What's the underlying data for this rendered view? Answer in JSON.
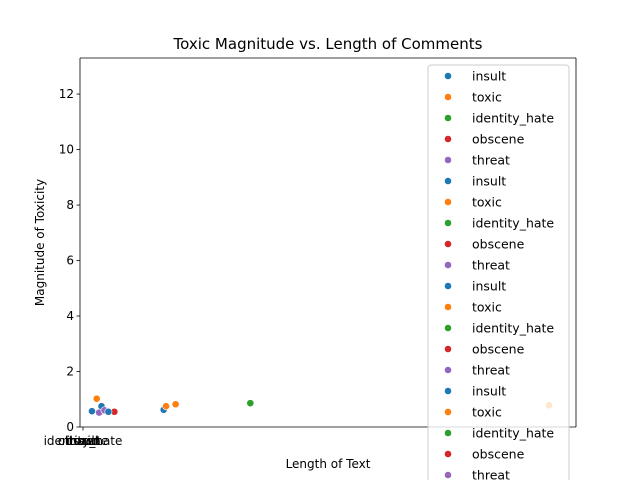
{
  "chart_data": {
    "type": "scatter",
    "title": "Toxic Magnitude vs. Length of Comments",
    "xlabel": "Length of Text",
    "ylabel": "Magnitude of Toxicity",
    "xlim": [
      -10,
      1650
    ],
    "ylim": [
      0,
      13.3
    ],
    "yticks": [
      0,
      2,
      4,
      6,
      8,
      10,
      12
    ],
    "xtick_labels": [
      "insult",
      "toxic",
      "identity_hate",
      "obscene",
      "threat"
    ],
    "grid": false,
    "legend_position": "right",
    "series": [
      {
        "name": "insult",
        "color": "#1f77b4",
        "points": [
          [
            30,
            0.57
          ],
          [
            62,
            0.57
          ],
          [
            270,
            0.62
          ]
        ]
      },
      {
        "name": "toxic",
        "color": "#ff7f0e",
        "points": [
          [
            46,
            1.02
          ],
          [
            278,
            0.75
          ],
          [
            310,
            0.82
          ],
          [
            1560,
            0.78
          ]
        ]
      },
      {
        "name": "identity_hate",
        "color": "#2ca02c",
        "points": [
          [
            560,
            0.86
          ]
        ]
      },
      {
        "name": "obscene",
        "color": "#d62728",
        "points": [
          [
            105,
            0.55
          ]
        ]
      },
      {
        "name": "threat",
        "color": "#9467bd",
        "points": [
          [
            54,
            0.52
          ]
        ]
      },
      {
        "name": "insult",
        "color": "#1f77b4",
        "points": [
          [
            62,
            0.75
          ]
        ]
      },
      {
        "name": "toxic",
        "color": "#ff7f0e",
        "points": [
          [
            80,
            0.57
          ]
        ]
      },
      {
        "name": "identity_hate",
        "color": "#2ca02c",
        "points": []
      },
      {
        "name": "obscene",
        "color": "#d62728",
        "points": []
      },
      {
        "name": "threat",
        "color": "#9467bd",
        "points": [
          [
            72,
            0.6
          ]
        ]
      },
      {
        "name": "insult",
        "color": "#1f77b4",
        "points": [
          [
            85,
            0.55
          ]
        ]
      },
      {
        "name": "toxic",
        "color": "#ff7f0e",
        "points": []
      },
      {
        "name": "identity_hate",
        "color": "#2ca02c",
        "points": []
      },
      {
        "name": "obscene",
        "color": "#d62728",
        "points": []
      },
      {
        "name": "threat",
        "color": "#9467bd",
        "points": []
      },
      {
        "name": "insult",
        "color": "#1f77b4",
        "points": []
      },
      {
        "name": "toxic",
        "color": "#ff7f0e",
        "points": []
      },
      {
        "name": "identity_hate",
        "color": "#2ca02c",
        "points": []
      },
      {
        "name": "obscene",
        "color": "#d62728",
        "points": []
      },
      {
        "name": "threat",
        "color": "#9467bd",
        "points": []
      }
    ]
  }
}
